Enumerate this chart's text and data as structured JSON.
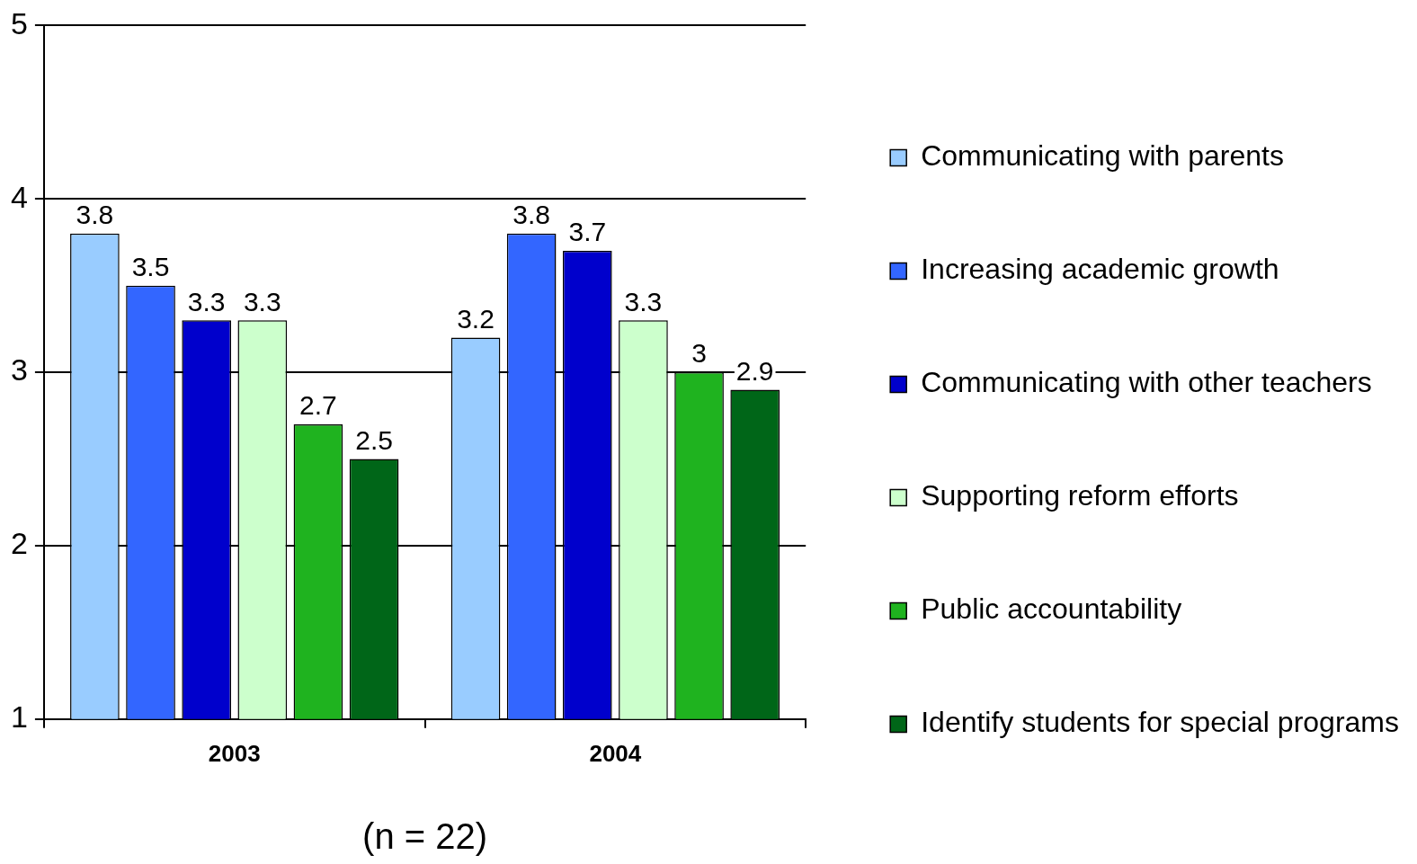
{
  "chart_data": {
    "type": "bar",
    "categories": [
      "2003",
      "2004"
    ],
    "xlabel": "(n = 22)",
    "series": [
      {
        "name": "Communicating with parents",
        "color": "#99ccff",
        "values": [
          3.8,
          3.2
        ]
      },
      {
        "name": "Increasing academic growth",
        "color": "#3366ff",
        "values": [
          3.5,
          3.8
        ]
      },
      {
        "name": "Communicating with other teachers",
        "color": "#0000cc",
        "values": [
          3.3,
          3.7
        ]
      },
      {
        "name": "Supporting reform efforts",
        "color": "#ccffcc",
        "values": [
          3.3,
          3.3
        ]
      },
      {
        "name": "Public accountability",
        "color": "#1fb31f",
        "values": [
          2.7,
          3
        ]
      },
      {
        "name": "Identify students for special programs",
        "color": "#006618",
        "values": [
          2.5,
          2.9
        ]
      }
    ],
    "ylim": [
      1,
      5
    ],
    "yticks": [
      1,
      2,
      3,
      4,
      5
    ],
    "grid": "y",
    "legend": "right",
    "data_labels": true
  }
}
